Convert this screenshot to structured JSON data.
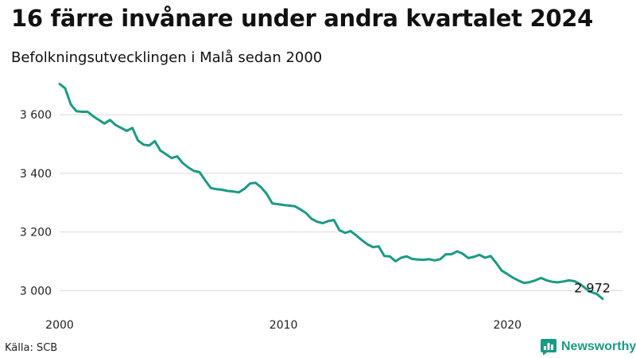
{
  "header": {
    "title": "16 färre invånare under andra kvartalet 2024",
    "subtitle": "Befolkningsutvecklingen i Malå sedan 2000"
  },
  "footer": {
    "source": "Källa: SCB",
    "brand": "Newsworthy",
    "brand_icon": "bar-chart-logo-icon"
  },
  "colors": {
    "line": "#1a9a86",
    "grid": "#d9d9d9",
    "brand": "#1a9a86"
  },
  "chart_data": {
    "type": "line",
    "title": "16 färre invånare under andra kvartalet 2024",
    "subtitle": "Befolkningsutvecklingen i Malå sedan 2000",
    "xlabel": "",
    "ylabel": "",
    "xlim": [
      2000,
      2024.5
    ],
    "ylim": [
      2960,
      3720
    ],
    "grid": "horizontal",
    "x_ticks": [
      2000,
      2010,
      2020
    ],
    "x_tick_labels": [
      "2000",
      "2010",
      "2020"
    ],
    "y_ticks": [
      3000,
      3200,
      3400,
      3600
    ],
    "y_tick_labels": [
      "3 000",
      "3 200",
      "3 400",
      "3 600"
    ],
    "end_label": "2 972",
    "series": [
      {
        "x": [
          2000.0,
          2000.25,
          2000.5,
          2000.75,
          2001.0,
          2001.25,
          2001.5,
          2001.75,
          2002.0,
          2002.25,
          2002.5,
          2002.75,
          2003.0,
          2003.25,
          2003.5,
          2003.75,
          2004.0,
          2004.25,
          2004.5,
          2004.75,
          2005.0,
          2005.25,
          2005.5,
          2005.75,
          2006.0,
          2006.25,
          2006.5,
          2006.75,
          2007.0,
          2007.25,
          2007.5,
          2007.75,
          2008.0,
          2008.25,
          2008.5,
          2008.75,
          2009.0,
          2009.25,
          2009.5,
          2009.75,
          2010.0,
          2010.25,
          2010.5,
          2010.75,
          2011.0,
          2011.25,
          2011.5,
          2011.75,
          2012.0,
          2012.25,
          2012.5,
          2012.75,
          2013.0,
          2013.25,
          2013.5,
          2013.75,
          2014.0,
          2014.25,
          2014.5,
          2014.75,
          2015.0,
          2015.25,
          2015.5,
          2015.75,
          2016.0,
          2016.25,
          2016.5,
          2016.75,
          2017.0,
          2017.25,
          2017.5,
          2017.75,
          2018.0,
          2018.25,
          2018.5,
          2018.75,
          2019.0,
          2019.25,
          2019.5,
          2019.75,
          2020.0,
          2020.25,
          2020.5,
          2020.75,
          2021.0,
          2021.25,
          2021.5,
          2021.75,
          2022.0,
          2022.25,
          2022.5,
          2022.75,
          2023.0,
          2023.25,
          2023.5,
          2023.75,
          2024.0,
          2024.25
        ],
        "values": [
          3705,
          3690,
          3635,
          3612,
          3610,
          3610,
          3595,
          3582,
          3570,
          3582,
          3565,
          3555,
          3545,
          3555,
          3512,
          3498,
          3495,
          3510,
          3478,
          3465,
          3452,
          3458,
          3435,
          3420,
          3408,
          3404,
          3376,
          3350,
          3346,
          3344,
          3340,
          3338,
          3335,
          3347,
          3365,
          3368,
          3352,
          3330,
          3297,
          3295,
          3292,
          3290,
          3288,
          3277,
          3265,
          3245,
          3235,
          3230,
          3237,
          3241,
          3206,
          3197,
          3203,
          3188,
          3172,
          3158,
          3148,
          3151,
          3118,
          3117,
          3100,
          3112,
          3117,
          3108,
          3106,
          3105,
          3107,
          3103,
          3107,
          3124,
          3124,
          3134,
          3126,
          3111,
          3115,
          3122,
          3112,
          3118,
          3094,
          3068,
          3056,
          3044,
          3034,
          3026,
          3029,
          3035,
          3043,
          3035,
          3030,
          3028,
          3031,
          3035,
          3032,
          3022,
          3007,
          2995,
          2988,
          2972
        ]
      }
    ]
  }
}
